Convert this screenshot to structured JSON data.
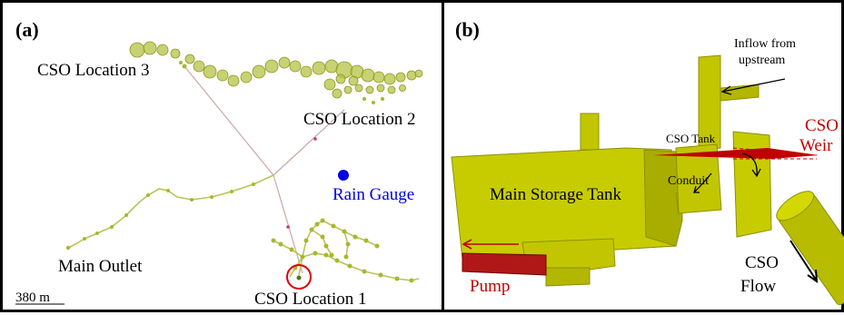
{
  "panel_a": {
    "tag": "(a)",
    "cso1": "CSO Location 1",
    "cso2": "CSO Location 2",
    "cso3": "CSO Location 3",
    "rain_gauge": "Rain Gauge",
    "main_outlet": "Main Outlet",
    "scale": "380 m"
  },
  "panel_b": {
    "tag": "(b)",
    "inflow_line1": "Inflow from",
    "inflow_line2": "upstream",
    "cso_tank": "CSO Tank",
    "cso_weir_line1": "CSO",
    "cso_weir_line2": "Weir",
    "conduit": "Conduit",
    "main_storage_tank": "Main Storage Tank",
    "pump": "Pump",
    "cso_flow_line1": "CSO",
    "cso_flow_line2": "Flow"
  },
  "colors": {
    "network": "#a8b82a",
    "tank": "#c7cc00",
    "tank_dark": "#a9ad00",
    "red": "#c00000",
    "gauge": "#0000e0"
  }
}
